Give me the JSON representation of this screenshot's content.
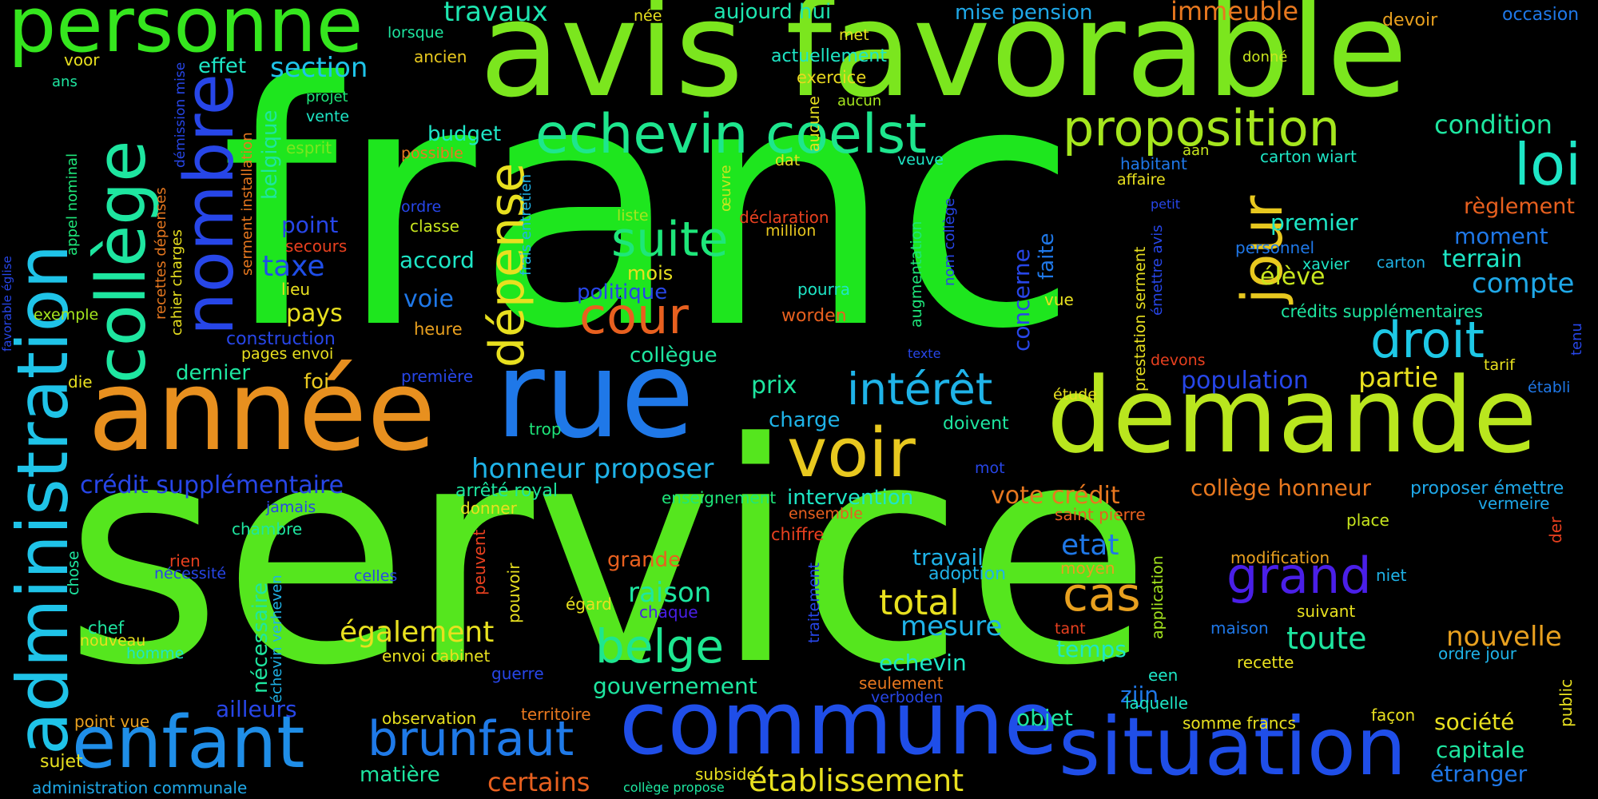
{
  "words": [
    {
      "text": "franc",
      "color": "#1ee61e"
    },
    {
      "text": "service",
      "color": "#55e61e"
    },
    {
      "text": "avis favorable",
      "color": "#7be61e"
    },
    {
      "text": "demande",
      "color": "#b9e61e"
    },
    {
      "text": "année",
      "color": "#e8901f"
    },
    {
      "text": "rue",
      "color": "#1f78e8"
    },
    {
      "text": "commune",
      "color": "#1f4ee8"
    },
    {
      "text": "situation",
      "color": "#1f4ee8"
    },
    {
      "text": "personne",
      "color": "#35e61e"
    },
    {
      "text": "enfant",
      "color": "#1f8ee8"
    },
    {
      "text": "administration",
      "color": "#1fc3e8"
    },
    {
      "text": "collège",
      "color": "#1ee6a0"
    },
    {
      "text": "nombre",
      "color": "#2746e8"
    },
    {
      "text": "echevin coelst",
      "color": "#1ee68e"
    },
    {
      "text": "proposition",
      "color": "#a5e61e"
    },
    {
      "text": "jour",
      "color": "#e8c81f"
    },
    {
      "text": "loi",
      "color": "#1ee6c6"
    },
    {
      "text": "droit",
      "color": "#1ec8e6"
    },
    {
      "text": "voir",
      "color": "#e8c81f"
    },
    {
      "text": "intérêt",
      "color": "#1fb3e8"
    },
    {
      "text": "brunfaut",
      "color": "#1f7ae8"
    },
    {
      "text": "suite",
      "color": "#1ee67a"
    },
    {
      "text": "dépense",
      "color": "#e8e01f"
    },
    {
      "text": "cour",
      "color": "#e8601f"
    },
    {
      "text": "grand",
      "color": "#4a1fe8"
    },
    {
      "text": "cas",
      "color": "#e8a01f"
    },
    {
      "text": "belge",
      "color": "#1ee690"
    },
    {
      "text": "travaux",
      "color": "#1ee6b0"
    },
    {
      "text": "aujourd hui",
      "color": "#1ee6b0"
    },
    {
      "text": "immeuble",
      "color": "#e8781f"
    },
    {
      "text": "mise pension",
      "color": "#1fa8e8"
    },
    {
      "text": "occasion",
      "color": "#1f78e8"
    },
    {
      "text": "devoir",
      "color": "#e8a01f"
    },
    {
      "text": "née",
      "color": "#e8e01f"
    },
    {
      "text": "lorsque",
      "color": "#1ee6a0"
    },
    {
      "text": "ancien",
      "color": "#e8c81f"
    },
    {
      "text": "actuellement",
      "color": "#1ee6c6"
    },
    {
      "text": "met",
      "color": "#e8e01f"
    },
    {
      "text": "exercice",
      "color": "#e8d81f"
    },
    {
      "text": "donné",
      "color": "#c8e61e"
    },
    {
      "text": "voor",
      "color": "#e8e01f"
    },
    {
      "text": "effet",
      "color": "#1ee6c6"
    },
    {
      "text": "section",
      "color": "#1fc3e8"
    },
    {
      "text": "ans",
      "color": "#1ee6a0"
    },
    {
      "text": "projet",
      "color": "#1ee67a"
    },
    {
      "text": "vente",
      "color": "#1ee6c6"
    },
    {
      "text": "aucun",
      "color": "#a5e61e"
    },
    {
      "text": "aucune",
      "color": "#e8e01f"
    },
    {
      "text": "esprit",
      "color": "#7be61e"
    },
    {
      "text": "budget",
      "color": "#1ee6c6"
    },
    {
      "text": "possible",
      "color": "#e8781f"
    },
    {
      "text": "condition",
      "color": "#1ee6a0"
    },
    {
      "text": "veuve",
      "color": "#1ee6c6"
    },
    {
      "text": "habitant",
      "color": "#1f78e8"
    },
    {
      "text": "carton wiart",
      "color": "#1ee6c6"
    },
    {
      "text": "aan",
      "color": "#c8e61e"
    },
    {
      "text": "affaire",
      "color": "#e8e01f"
    },
    {
      "text": "dat",
      "color": "#e8e01f"
    },
    {
      "text": "ordre",
      "color": "#2746e8"
    },
    {
      "text": "classe",
      "color": "#c8e61e"
    },
    {
      "text": "liste",
      "color": "#a5e61e"
    },
    {
      "text": "déclaration",
      "color": "#e8401f"
    },
    {
      "text": "million",
      "color": "#e8c81f"
    },
    {
      "text": "petit",
      "color": "#2746e8"
    },
    {
      "text": "règlement",
      "color": "#e8601f"
    },
    {
      "text": "premier",
      "color": "#1ee6c6"
    },
    {
      "text": "moment",
      "color": "#1f78e8"
    },
    {
      "text": "personnel",
      "color": "#1f78e8"
    },
    {
      "text": "xavier",
      "color": "#1ee6c6"
    },
    {
      "text": "carton",
      "color": "#1fb3e8"
    },
    {
      "text": "terrain",
      "color": "#1ee6c6"
    },
    {
      "text": "élève",
      "color": "#c8e61e"
    },
    {
      "text": "compte",
      "color": "#1fa8e8"
    },
    {
      "text": "crédits supplémentaires",
      "color": "#1ee6a0"
    },
    {
      "text": "point",
      "color": "#2746e8"
    },
    {
      "text": "secours",
      "color": "#e8401f"
    },
    {
      "text": "taxe",
      "color": "#1f4ee8"
    },
    {
      "text": "lieu",
      "color": "#e8e01f"
    },
    {
      "text": "accord",
      "color": "#1ee6c6"
    },
    {
      "text": "mois",
      "color": "#e8e01f"
    },
    {
      "text": "politique",
      "color": "#2746e8"
    },
    {
      "text": "pourra",
      "color": "#1ee6c6"
    },
    {
      "text": "worden",
      "color": "#e8601f"
    },
    {
      "text": "pays",
      "color": "#e8e01f"
    },
    {
      "text": "voie",
      "color": "#1f78e8"
    },
    {
      "text": "exemple",
      "color": "#a5e61e"
    },
    {
      "text": "construction",
      "color": "#2746e8"
    },
    {
      "text": "heure",
      "color": "#e8a01f"
    },
    {
      "text": "pages envoi",
      "color": "#e8e01f"
    },
    {
      "text": "collègue",
      "color": "#1ee6a0"
    },
    {
      "text": "texte",
      "color": "#2746e8"
    },
    {
      "text": "devons",
      "color": "#e8401f"
    },
    {
      "text": "tarif",
      "color": "#e8e01f"
    },
    {
      "text": "partie",
      "color": "#e8e01f"
    },
    {
      "text": "population",
      "color": "#2746e8"
    },
    {
      "text": "établi",
      "color": "#1f78e8"
    },
    {
      "text": "dernier",
      "color": "#1ee6a0"
    },
    {
      "text": "foi",
      "color": "#e8c81f"
    },
    {
      "text": "die",
      "color": "#e8e01f"
    },
    {
      "text": "première",
      "color": "#2746e8"
    },
    {
      "text": "prix",
      "color": "#1ee6a0"
    },
    {
      "text": "charge",
      "color": "#1fb3e8"
    },
    {
      "text": "doivent",
      "color": "#1ee6a0"
    },
    {
      "text": "étude",
      "color": "#e8e01f"
    },
    {
      "text": "trop",
      "color": "#1ee67a"
    },
    {
      "text": "mot",
      "color": "#2746e8"
    },
    {
      "text": "crédit supplémentaire",
      "color": "#2746e8"
    },
    {
      "text": "honneur proposer",
      "color": "#1fb3e8"
    },
    {
      "text": "arrêté royal",
      "color": "#1ee6a0"
    },
    {
      "text": "enseignement",
      "color": "#1ee67a"
    },
    {
      "text": "intervention",
      "color": "#1ee6c6"
    },
    {
      "text": "vote crédit",
      "color": "#e8781f"
    },
    {
      "text": "collège honneur",
      "color": "#e8781f"
    },
    {
      "text": "proposer émettre",
      "color": "#1fa8e8"
    },
    {
      "text": "vermeire",
      "color": "#1fa8e8"
    },
    {
      "text": "jamais",
      "color": "#2746e8"
    },
    {
      "text": "donner",
      "color": "#e8e01f"
    },
    {
      "text": "ensemble",
      "color": "#e8601f"
    },
    {
      "text": "saint pierre",
      "color": "#e8601f"
    },
    {
      "text": "chambre",
      "color": "#1ee6a0"
    },
    {
      "text": "chiffre",
      "color": "#e8401f"
    },
    {
      "text": "place",
      "color": "#c8e61e"
    },
    {
      "text": "etat",
      "color": "#1f78e8"
    },
    {
      "text": "moyen",
      "color": "#e8a01f"
    },
    {
      "text": "travail",
      "color": "#1fb3e8"
    },
    {
      "text": "adoption",
      "color": "#1fb3e8"
    },
    {
      "text": "modification",
      "color": "#e8a01f"
    },
    {
      "text": "niet",
      "color": "#1fb3e8"
    },
    {
      "text": "rien",
      "color": "#e8401f"
    },
    {
      "text": "nécessité",
      "color": "#2746e8"
    },
    {
      "text": "celles",
      "color": "#2746e8"
    },
    {
      "text": "grande",
      "color": "#e8601f"
    },
    {
      "text": "raison",
      "color": "#1ee6a0"
    },
    {
      "text": "égard",
      "color": "#e8e01f"
    },
    {
      "text": "chaque",
      "color": "#4a1fe8"
    },
    {
      "text": "total",
      "color": "#e8e01f"
    },
    {
      "text": "suivant",
      "color": "#e8e01f"
    },
    {
      "text": "chef",
      "color": "#1ee6a0"
    },
    {
      "text": "nouveau",
      "color": "#e8e01f"
    },
    {
      "text": "homme",
      "color": "#1ee6c6"
    },
    {
      "text": "également",
      "color": "#e8e01f"
    },
    {
      "text": "envoi cabinet",
      "color": "#e8e01f"
    },
    {
      "text": "mesure",
      "color": "#1fb3e8"
    },
    {
      "text": "tant",
      "color": "#e8401f"
    },
    {
      "text": "temps",
      "color": "#1ee6c6"
    },
    {
      "text": "maison",
      "color": "#1f78e8"
    },
    {
      "text": "toute",
      "color": "#1ee6a0"
    },
    {
      "text": "nouvelle",
      "color": "#e8a01f"
    },
    {
      "text": "ordre jour",
      "color": "#1fb3e8"
    },
    {
      "text": "guerre",
      "color": "#2746e8"
    },
    {
      "text": "echevin",
      "color": "#1ee6c6"
    },
    {
      "text": "een",
      "color": "#1ee6c6"
    },
    {
      "text": "recette",
      "color": "#e8e01f"
    },
    {
      "text": "gouvernement",
      "color": "#1ee6a0"
    },
    {
      "text": "seulement",
      "color": "#e8781f"
    },
    {
      "text": "verboden",
      "color": "#2746e8"
    },
    {
      "text": "ailleurs",
      "color": "#2746e8"
    },
    {
      "text": "zijn",
      "color": "#1f78e8"
    },
    {
      "text": "laquelle",
      "color": "#1ee6c6"
    },
    {
      "text": "façon",
      "color": "#e8e01f"
    },
    {
      "text": "point vue",
      "color": "#e8a01f"
    },
    {
      "text": "observation",
      "color": "#e8e01f"
    },
    {
      "text": "territoire",
      "color": "#e8781f"
    },
    {
      "text": "objet",
      "color": "#1ee6a0"
    },
    {
      "text": "somme francs",
      "color": "#e8e01f"
    },
    {
      "text": "société",
      "color": "#e8e01f"
    },
    {
      "text": "sujet",
      "color": "#e8e01f"
    },
    {
      "text": "matière",
      "color": "#1ee6a0"
    },
    {
      "text": "certains",
      "color": "#e8601f"
    },
    {
      "text": "subside",
      "color": "#e8e01f"
    },
    {
      "text": "établissement",
      "color": "#e8e01f"
    },
    {
      "text": "capitale",
      "color": "#1ee6a0"
    },
    {
      "text": "étranger",
      "color": "#1f78e8"
    },
    {
      "text": "administration communale",
      "color": "#1fa8e8"
    },
    {
      "text": "collège propose",
      "color": "#1ee6a0"
    },
    {
      "text": "favorable église",
      "color": "#2746e8"
    },
    {
      "text": "appel nominal",
      "color": "#1ee67a"
    },
    {
      "text": "recettes dépenses",
      "color": "#e8781f"
    },
    {
      "text": "cahier charges",
      "color": "#e8e01f"
    },
    {
      "text": "démission mise",
      "color": "#2746e8"
    },
    {
      "text": "serment installation",
      "color": "#e8781f"
    },
    {
      "text": "belgique",
      "color": "#1ee6a0"
    },
    {
      "text": "frais entretien",
      "color": "#1fb3e8"
    },
    {
      "text": "œuvre",
      "color": "#c8e61e"
    },
    {
      "text": "augmentation",
      "color": "#1ee67a"
    },
    {
      "text": "nom collège",
      "color": "#2746e8"
    },
    {
      "text": "concerne",
      "color": "#2746e8"
    },
    {
      "text": "faite",
      "color": "#1f78e8"
    },
    {
      "text": "vue",
      "color": "#e8e01f"
    },
    {
      "text": "prestation serment",
      "color": "#e8e01f"
    },
    {
      "text": "émettre avis",
      "color": "#2746e8"
    },
    {
      "text": "tenu",
      "color": "#2746e8"
    },
    {
      "text": "public",
      "color": "#e8e01f"
    },
    {
      "text": "der",
      "color": "#e8401f"
    },
    {
      "text": "chose",
      "color": "#1ee6a0"
    },
    {
      "text": "échevin verheven",
      "color": "#1fb3e8"
    },
    {
      "text": "nécessaire",
      "color": "#1ee6a0"
    },
    {
      "text": "peuvent",
      "color": "#e8401f"
    },
    {
      "text": "pouvoir",
      "color": "#e8e01f"
    },
    {
      "text": "traitement",
      "color": "#2746e8"
    },
    {
      "text": "application",
      "color": "#a5e61e"
    }
  ]
}
